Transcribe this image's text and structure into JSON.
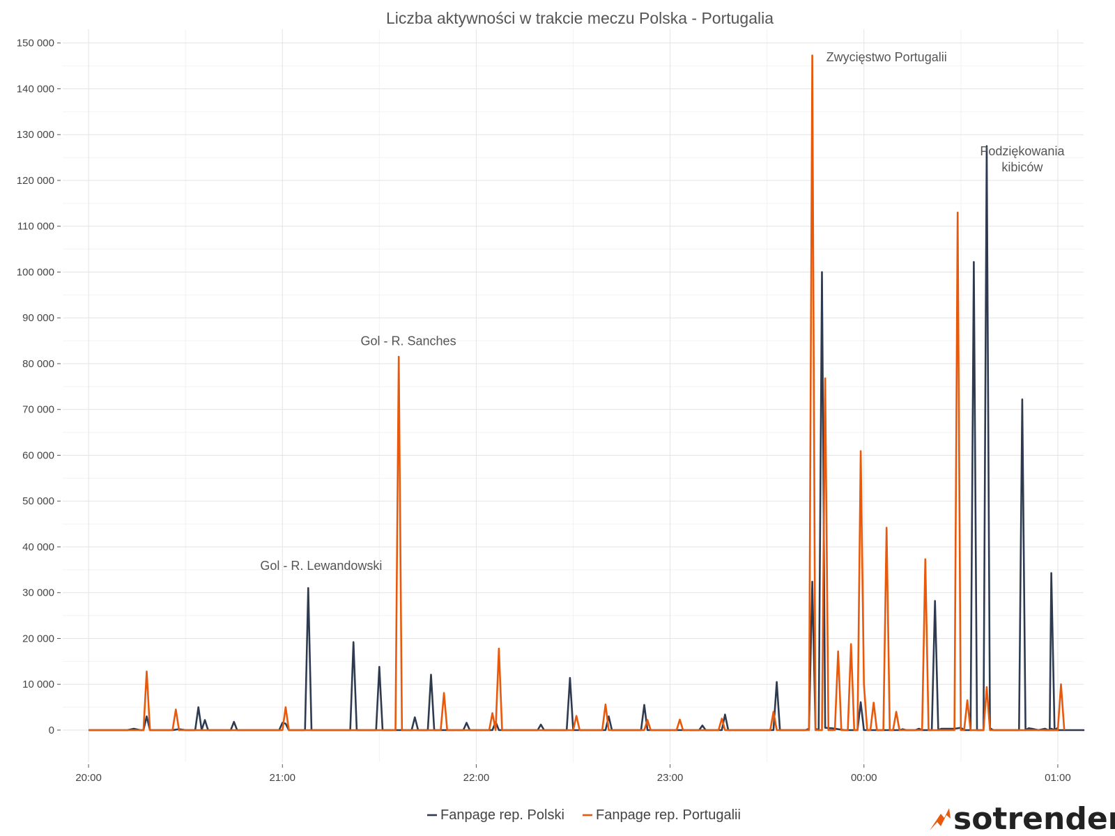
{
  "colors": {
    "polski": "#2e3a4f",
    "portugalii": "#e8590c",
    "logo_arrow": "#e8590c"
  },
  "logo": {
    "text": "sotrender"
  },
  "chart_data": {
    "type": "line",
    "title": "Liczba aktywności w trakcie meczu Polska - Portugalia",
    "xlabel": "",
    "ylabel": "",
    "x_unit": "minutes since 20:00",
    "xlim": [
      -8,
      308
    ],
    "ylim": [
      -7000,
      153000
    ],
    "yticks": [
      0,
      10000,
      20000,
      30000,
      40000,
      50000,
      60000,
      70000,
      80000,
      90000,
      100000,
      110000,
      120000,
      130000,
      140000,
      150000
    ],
    "ytick_labels": [
      "0",
      "10 000",
      "20 000",
      "30 000",
      "40 000",
      "50 000",
      "60 000",
      "70 000",
      "80 000",
      "90 000",
      "100 000",
      "110 000",
      "120 000",
      "130 000",
      "140 000",
      "150 000"
    ],
    "xticks": [
      0,
      60,
      120,
      180,
      240,
      300
    ],
    "xtick_labels": [
      "20:00",
      "21:00",
      "22:00",
      "23:00",
      "00:00",
      "01:00"
    ],
    "grid": true,
    "legend": "bottom",
    "series": [
      {
        "name": "Fanpage rep. Polski",
        "color": "#2e3a4f",
        "points": [
          [
            0,
            0
          ],
          [
            12,
            0
          ],
          [
            14,
            300
          ],
          [
            16,
            0
          ],
          [
            17,
            0
          ],
          [
            18,
            3000
          ],
          [
            19,
            0
          ],
          [
            26,
            0
          ],
          [
            28,
            200
          ],
          [
            30,
            0
          ],
          [
            33,
            0
          ],
          [
            34,
            5000
          ],
          [
            35,
            0
          ],
          [
            36,
            2200
          ],
          [
            37,
            0
          ],
          [
            44,
            0
          ],
          [
            45,
            1800
          ],
          [
            46,
            0
          ],
          [
            59,
            0
          ],
          [
            60,
            1600
          ],
          [
            61,
            1400
          ],
          [
            62,
            0
          ],
          [
            67,
            0
          ],
          [
            68,
            31000
          ],
          [
            69,
            0
          ],
          [
            81,
            0
          ],
          [
            82,
            19200
          ],
          [
            83,
            0
          ],
          [
            89,
            0
          ],
          [
            90,
            13800
          ],
          [
            91,
            0
          ],
          [
            100,
            0
          ],
          [
            101,
            2800
          ],
          [
            102,
            0
          ],
          [
            105,
            0
          ],
          [
            106,
            12100
          ],
          [
            107,
            0
          ],
          [
            116,
            0
          ],
          [
            117,
            1600
          ],
          [
            118,
            0
          ],
          [
            125,
            0
          ],
          [
            126,
            1800
          ],
          [
            127,
            0
          ],
          [
            139,
            0
          ],
          [
            140,
            1200
          ],
          [
            141,
            0
          ],
          [
            148,
            0
          ],
          [
            149,
            11400
          ],
          [
            150,
            0
          ],
          [
            160,
            0
          ],
          [
            161,
            3000
          ],
          [
            162,
            0
          ],
          [
            171,
            0
          ],
          [
            172,
            5500
          ],
          [
            173,
            0
          ],
          [
            189,
            0
          ],
          [
            190,
            1000
          ],
          [
            191,
            0
          ],
          [
            196,
            0
          ],
          [
            197,
            3400
          ],
          [
            198,
            0
          ],
          [
            212,
            0
          ],
          [
            213,
            10500
          ],
          [
            214,
            0
          ],
          [
            222,
            0
          ],
          [
            223,
            300
          ],
          [
            224,
            32400
          ],
          [
            225,
            300
          ],
          [
            226,
            0
          ],
          [
            227,
            100000
          ],
          [
            228,
            500
          ],
          [
            230,
            400
          ],
          [
            232,
            200
          ],
          [
            234,
            0
          ],
          [
            238,
            0
          ],
          [
            239,
            6100
          ],
          [
            240,
            0
          ],
          [
            251,
            0
          ],
          [
            252,
            200
          ],
          [
            253,
            0
          ],
          [
            255,
            0
          ],
          [
            256,
            0
          ],
          [
            257,
            300
          ],
          [
            258,
            0
          ],
          [
            259,
            0
          ],
          [
            260,
            0
          ],
          [
            261,
            0
          ],
          [
            262,
            28200
          ],
          [
            263,
            0
          ],
          [
            264,
            300
          ],
          [
            266,
            300
          ],
          [
            268,
            300
          ],
          [
            270,
            500
          ],
          [
            271,
            0
          ],
          [
            272,
            0
          ],
          [
            273,
            0
          ],
          [
            274,
            102200
          ],
          [
            275,
            0
          ],
          [
            276,
            0
          ],
          [
            277,
            0
          ],
          [
            278,
            127500
          ],
          [
            279,
            400
          ],
          [
            280,
            0
          ],
          [
            288,
            0
          ],
          [
            289,
            72200
          ],
          [
            290,
            0
          ],
          [
            291,
            400
          ],
          [
            292,
            300
          ],
          [
            294,
            0
          ],
          [
            296,
            300
          ],
          [
            297,
            0
          ],
          [
            298,
            300
          ],
          [
            299,
            0
          ],
          [
            300,
            0
          ],
          [
            301,
            0
          ],
          [
            302,
            0
          ],
          [
            303,
            0
          ],
          [
            304,
            0
          ],
          [
            305,
            0
          ],
          [
            306,
            0
          ],
          [
            307,
            0
          ],
          [
            308,
            0
          ],
          [
            296,
            0
          ],
          [
            297,
            0
          ],
          [
            297.5,
            0
          ],
          [
            298,
            34300
          ],
          [
            299,
            0
          ],
          [
            300,
            500
          ]
        ]
      },
      {
        "name": "Fanpage rep. Portugalii",
        "color": "#e8590c",
        "points": [
          [
            0,
            0
          ],
          [
            17,
            0
          ],
          [
            18,
            12800
          ],
          [
            19,
            0
          ],
          [
            26,
            0
          ],
          [
            27,
            4500
          ],
          [
            28,
            0
          ],
          [
            60,
            0
          ],
          [
            61,
            5000
          ],
          [
            62,
            0
          ],
          [
            95,
            0
          ],
          [
            96,
            81500
          ],
          [
            97,
            0
          ],
          [
            109,
            0
          ],
          [
            110,
            8100
          ],
          [
            111,
            0
          ],
          [
            124,
            0
          ],
          [
            125,
            3700
          ],
          [
            126,
            0
          ],
          [
            127,
            17800
          ],
          [
            128,
            0
          ],
          [
            150,
            0
          ],
          [
            151,
            3100
          ],
          [
            152,
            0
          ],
          [
            159,
            0
          ],
          [
            160,
            5600
          ],
          [
            161,
            0
          ],
          [
            172,
            0
          ],
          [
            173,
            2200
          ],
          [
            174,
            0
          ],
          [
            182,
            0
          ],
          [
            183,
            2300
          ],
          [
            184,
            0
          ],
          [
            195,
            0
          ],
          [
            196,
            2500
          ],
          [
            197,
            0
          ],
          [
            211,
            0
          ],
          [
            212,
            4000
          ],
          [
            213,
            0
          ],
          [
            223,
            0
          ],
          [
            224,
            147300
          ],
          [
            225,
            0
          ],
          [
            227,
            0
          ],
          [
            228,
            76800
          ],
          [
            229,
            0
          ],
          [
            231,
            0
          ],
          [
            232,
            17200
          ],
          [
            233,
            0
          ],
          [
            235,
            0
          ],
          [
            236,
            18800
          ],
          [
            237,
            0
          ],
          [
            238,
            0
          ],
          [
            239,
            60900
          ],
          [
            240,
            10000
          ],
          [
            241,
            0
          ],
          [
            242,
            0
          ],
          [
            243,
            6000
          ],
          [
            244,
            0
          ],
          [
            246,
            0
          ],
          [
            247,
            44200
          ],
          [
            248,
            0
          ],
          [
            249,
            0
          ],
          [
            250,
            4000
          ],
          [
            251,
            0
          ],
          [
            258,
            0
          ],
          [
            259,
            37300
          ],
          [
            260,
            0
          ],
          [
            268,
            0
          ],
          [
            269,
            113000
          ],
          [
            270,
            0
          ],
          [
            271,
            0
          ],
          [
            272,
            6500
          ],
          [
            273,
            0
          ],
          [
            277,
            0
          ],
          [
            278,
            9400
          ],
          [
            279,
            0
          ],
          [
            300,
            0
          ],
          [
            301,
            10000
          ],
          [
            302,
            0
          ]
        ]
      }
    ],
    "annotations": [
      {
        "text": "Gol - R. Lewandowski",
        "x": 72,
        "y": 35000
      },
      {
        "text": "Gol - R. Sanches",
        "x": 99,
        "y": 84000
      },
      {
        "text": "Zwycięstwo Portugalii",
        "x": 247,
        "y": 146000
      },
      {
        "text": "Podziękowania",
        "x": 289,
        "y": 125500
      },
      {
        "text": "kibiców",
        "x": 289,
        "y": 122000
      }
    ]
  }
}
